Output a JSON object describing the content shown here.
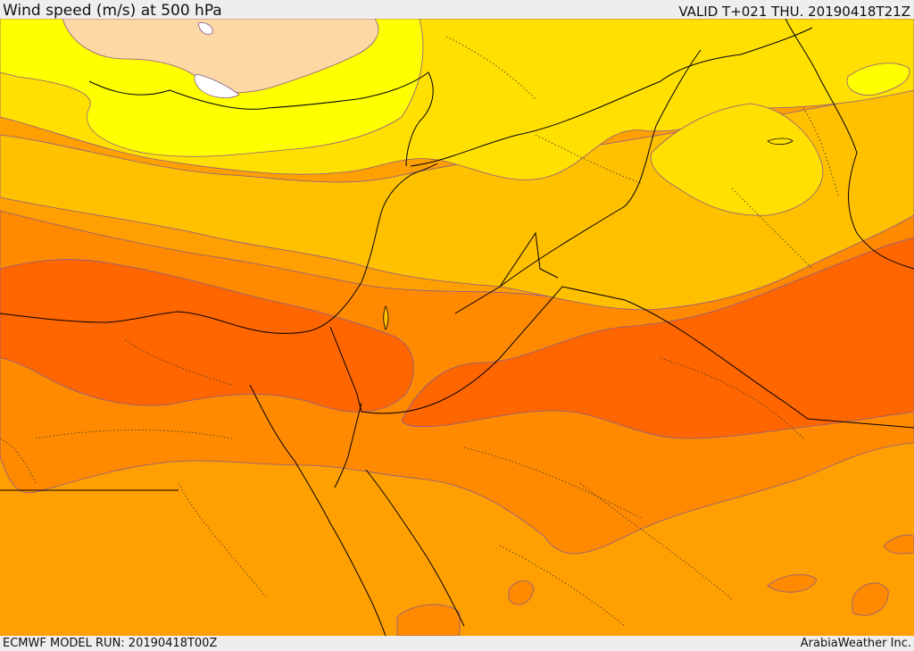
{
  "header": {
    "title": "Wind speed (m/s) at 500 hPa",
    "valid": "VALID T+021 THU. 20190418T21Z"
  },
  "footer": {
    "model_run": "ECMWF MODEL RUN: 20190418T00Z",
    "credit": "ArabiaWeather Inc."
  },
  "palette": {
    "lightest": "#ffff00",
    "peach": "#fcd9a4",
    "white_band": "#ffffff",
    "yellow": "#ffe100",
    "yellow_orange": "#ffc000",
    "orange": "#ffa000",
    "dark_orange": "#ff8000",
    "red_orange": "#ff6000",
    "contour": "#8a5a8a",
    "border": "#000000"
  }
}
